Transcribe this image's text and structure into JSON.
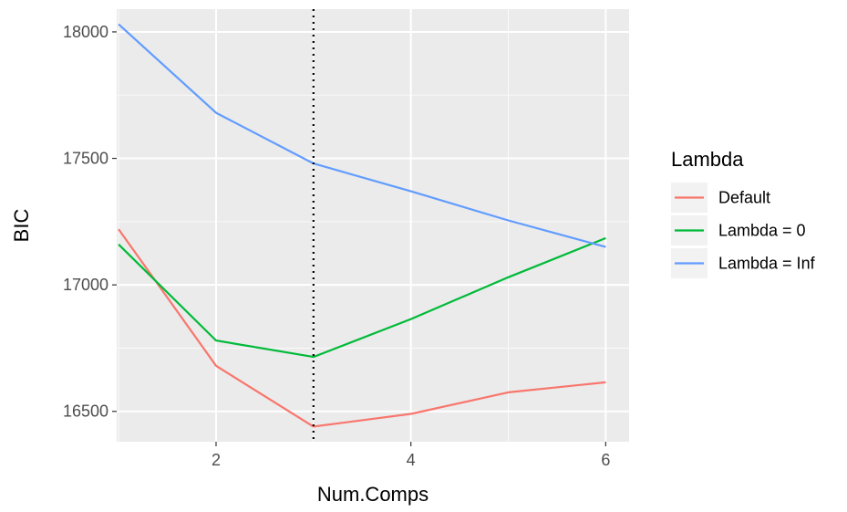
{
  "chart_data": {
    "type": "line",
    "title": "",
    "xlabel": "Num.Comps",
    "ylabel": "BIC",
    "x": [
      1,
      2,
      3,
      4,
      5,
      6
    ],
    "xlim": [
      0.98,
      6.24
    ],
    "ylim": [
      16380,
      18090
    ],
    "x_ticks": [
      2,
      4,
      6
    ],
    "y_ticks": [
      16500,
      17000,
      17500,
      18000
    ],
    "x_tick_labels": [
      "2",
      "4",
      "6"
    ],
    "y_tick_labels": [
      "16500",
      "17000",
      "17500",
      "18000"
    ],
    "vline": {
      "x": 3,
      "style": "dotted",
      "color": "#000000"
    },
    "legend": {
      "title": "Lambda",
      "position": "right"
    },
    "grid": true,
    "panel_background": "#ebebeb",
    "series": [
      {
        "name": "Default",
        "color": "#f8766d",
        "values": [
          17220,
          16680,
          16440,
          16490,
          16575,
          16615
        ]
      },
      {
        "name": "Lambda = 0",
        "color": "#00ba38",
        "values": [
          17160,
          16780,
          16715,
          16865,
          17030,
          17185
        ]
      },
      {
        "name": "Lambda = Inf",
        "color": "#619cff",
        "values": [
          18030,
          17680,
          17480,
          17370,
          17255,
          17150
        ]
      }
    ]
  }
}
